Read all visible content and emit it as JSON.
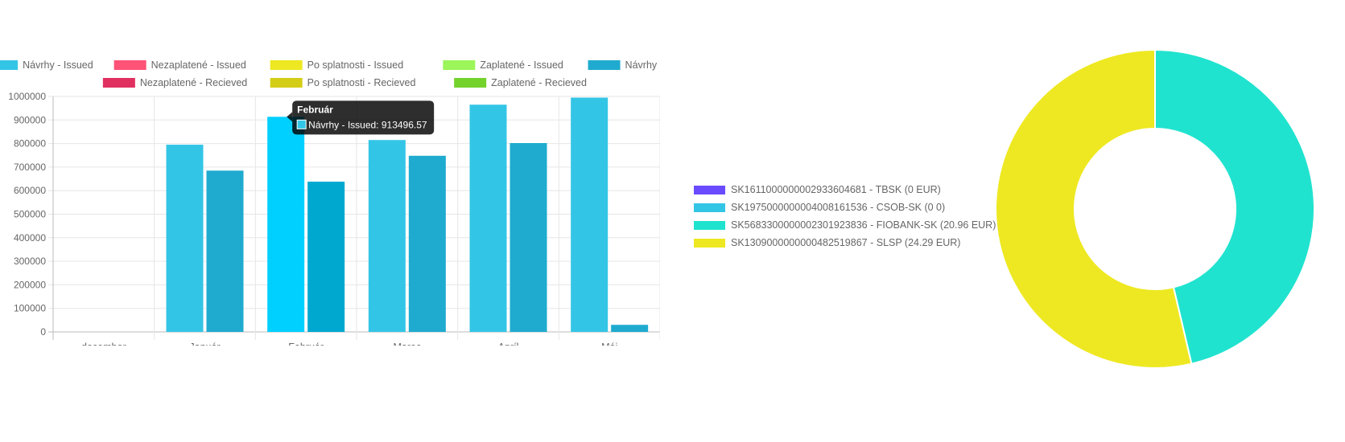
{
  "chart_data": [
    {
      "type": "bar",
      "categories": [
        "december",
        "Január",
        "Február",
        "Marec",
        "Apríl",
        "Máj"
      ],
      "ylim": [
        0,
        1000000
      ],
      "yticks": [
        "1000000",
        "900000",
        "800000",
        "700000",
        "600000",
        "500000",
        "400000",
        "300000",
        "200000",
        "100000",
        "0"
      ],
      "grid": true,
      "legend_position": "top",
      "series": [
        {
          "name": "Návrhy - Issued",
          "color": "#33c5e6",
          "values": [
            0,
            795000,
            913496.57,
            815000,
            965000,
            995000
          ]
        },
        {
          "name": "Nezaplatené - Issued",
          "color": "#ff5277",
          "values": [
            0,
            0,
            0,
            0,
            0,
            0
          ]
        },
        {
          "name": "Po splatnosti  - Issued",
          "color": "#eee822",
          "values": [
            0,
            0,
            0,
            0,
            0,
            0
          ]
        },
        {
          "name": "Zaplatené - Issued",
          "color": "#9cf559",
          "values": [
            0,
            0,
            0,
            0,
            0,
            0
          ]
        },
        {
          "name": "Návrhy - Recieved",
          "color": "#1fabcf",
          "values": [
            0,
            685000,
            638000,
            748000,
            802000,
            30000
          ]
        },
        {
          "name": "Nezaplatené - Recieved",
          "color": "#e0305f",
          "values": [
            0,
            0,
            0,
            0,
            0,
            0
          ]
        },
        {
          "name": "Po splatnosti  - Recieved",
          "color": "#d4cd16",
          "values": [
            0,
            0,
            0,
            0,
            0,
            0
          ]
        },
        {
          "name": "Zaplatené - Recieved",
          "color": "#74d22d",
          "values": [
            0,
            0,
            0,
            0,
            0,
            0
          ]
        }
      ],
      "tooltip": {
        "title": "Február",
        "label": "Návrhy - Issued: 913496.57",
        "color": "#33c5e6"
      }
    },
    {
      "type": "pie",
      "legend_position": "left",
      "labels": [
        "SK1611000000002933604681 - TBSK (0 EUR)",
        "SK1975000000004008161536 - CSOB-SK (0 0)",
        "SK5683300000002301923836 - FIOBANK-SK (20.96 EUR)",
        "SK1309000000000482519867 - SLSP (24.29 EUR)"
      ],
      "values": [
        0,
        0,
        20.96,
        24.29
      ],
      "colors": [
        "#6b4bff",
        "#33c5e6",
        "#20e3cf",
        "#eee822"
      ]
    }
  ]
}
